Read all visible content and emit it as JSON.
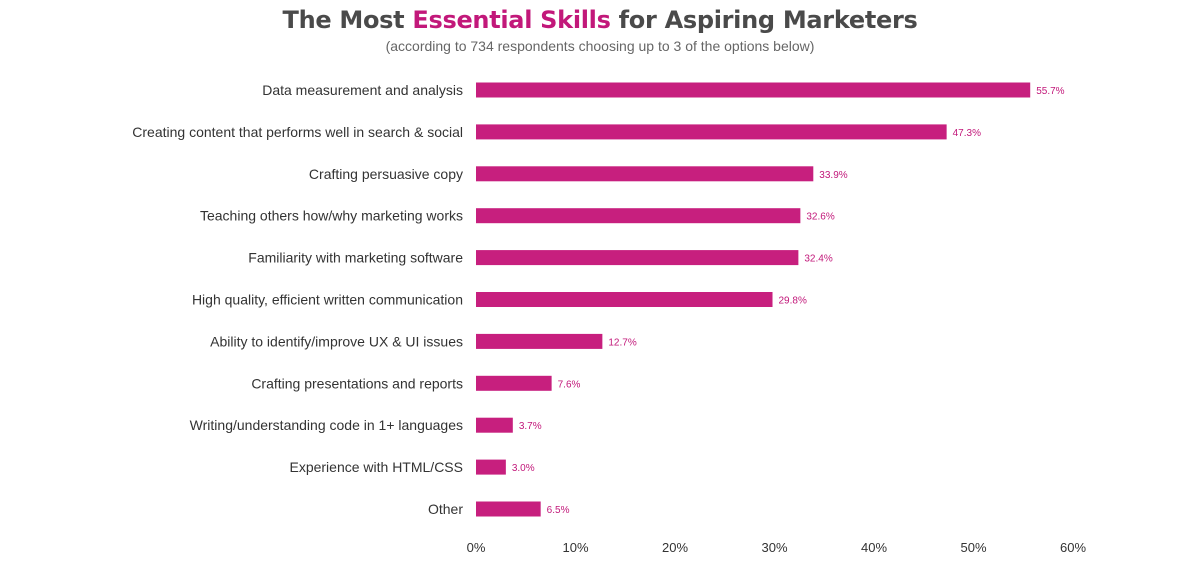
{
  "chart_data": {
    "type": "bar",
    "orientation": "horizontal",
    "title_parts": [
      "The Most ",
      "Essential Skills",
      " for Aspiring Marketers"
    ],
    "subtitle": "(according to 734 respondents choosing up to 3 of the options below)",
    "categories": [
      "Data measurement and analysis",
      "Creating content that performs well in search & social",
      "Crafting persuasive copy",
      "Teaching others how/why marketing works",
      "Familiarity with marketing software",
      "High quality, efficient written communication",
      "Ability to identify/improve UX & UI issues",
      "Crafting presentations and reports",
      "Writing/understanding code in 1+ languages",
      "Experience with HTML/CSS",
      "Other"
    ],
    "values": [
      55.7,
      47.3,
      33.9,
      32.6,
      32.4,
      29.8,
      12.7,
      7.6,
      3.7,
      3.0,
      6.5
    ],
    "value_labels": [
      "55.7%",
      "47.3%",
      "33.9%",
      "32.6%",
      "32.4%",
      "29.8%",
      "12.7%",
      "7.6%",
      "3.7%",
      "3.0%",
      "6.5%"
    ],
    "xticks": [
      "0%",
      "10%",
      "20%",
      "30%",
      "40%",
      "50%",
      "60%"
    ],
    "xlim": [
      0,
      60
    ],
    "grid": false,
    "bar_color": "#c71f7e",
    "accent_color": "#c2187a"
  }
}
